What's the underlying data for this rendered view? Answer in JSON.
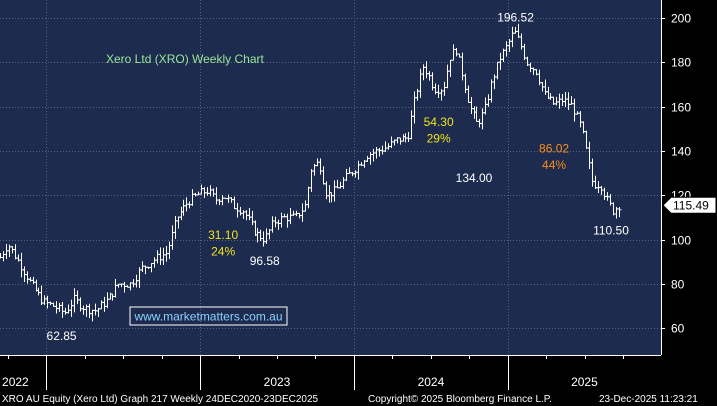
{
  "colors": {
    "plot_bg": "#1c2b4e",
    "axis_bg": "#000000",
    "grid": "#56627e",
    "candle": "#ffffff",
    "title": "#9be59b",
    "yellow": "#f2e21d",
    "orange": "#ff8c1a",
    "watermark": "#8fd0ff",
    "text": "#ffffff",
    "footer_bg": "#000000"
  },
  "footer": {
    "left": "XRO AU Equity (Xero Ltd) Graph 217 Weekly 24DEC2020-23DEC2025",
    "center": "Copyright© 2025 Bloomberg Finance L.P.",
    "right": "23-Dec-2025 11:23:21"
  },
  "chart_data": {
    "type": "candlestick",
    "title": "Xero Ltd (XRO) Weekly Chart",
    "watermark": "www.marketmatters.com.au",
    "x_range": [
      2021.7,
      2025.995
    ],
    "x_ticks": [
      {
        "label": "2022",
        "x": 2022.0
      },
      {
        "label": "2023",
        "x": 2023.0
      },
      {
        "label": "2024",
        "x": 2024.0
      },
      {
        "label": "2025",
        "x": 2025.0
      }
    ],
    "ylim": [
      48,
      208
    ],
    "y_ticks": [
      60,
      80,
      100,
      120,
      140,
      160,
      180,
      200
    ],
    "last_price": 115.49,
    "key_points": [
      [
        2021.7,
        92
      ],
      [
        2021.75,
        98
      ],
      [
        2021.82,
        90
      ],
      [
        2021.9,
        80
      ],
      [
        2021.98,
        72
      ],
      [
        2022.05,
        70
      ],
      [
        2022.12,
        67
      ],
      [
        2022.18,
        73
      ],
      [
        2022.25,
        69
      ],
      [
        2022.32,
        68
      ],
      [
        2022.4,
        73
      ],
      [
        2022.47,
        80
      ],
      [
        2022.55,
        80
      ],
      [
        2022.62,
        87
      ],
      [
        2022.7,
        91
      ],
      [
        2022.78,
        94
      ],
      [
        2022.85,
        110
      ],
      [
        2022.92,
        117
      ],
      [
        2023.0,
        121
      ],
      [
        2023.05,
        122
      ],
      [
        2023.1,
        118
      ],
      [
        2023.15,
        120
      ],
      [
        2023.22,
        115
      ],
      [
        2023.28,
        113
      ],
      [
        2023.36,
        103
      ],
      [
        2023.42,
        100
      ],
      [
        2023.48,
        108
      ],
      [
        2023.55,
        110
      ],
      [
        2023.62,
        110
      ],
      [
        2023.68,
        115
      ],
      [
        2023.72,
        132
      ],
      [
        2023.77,
        135
      ],
      [
        2023.82,
        120
      ],
      [
        2023.88,
        122
      ],
      [
        2023.95,
        128
      ],
      [
        2024.02,
        133
      ],
      [
        2024.08,
        138
      ],
      [
        2024.15,
        140
      ],
      [
        2024.22,
        142
      ],
      [
        2024.28,
        145
      ],
      [
        2024.35,
        146
      ],
      [
        2024.4,
        165
      ],
      [
        2024.45,
        178
      ],
      [
        2024.48,
        175
      ],
      [
        2024.52,
        168
      ],
      [
        2024.58,
        168
      ],
      [
        2024.62,
        182
      ],
      [
        2024.66,
        186
      ],
      [
        2024.7,
        175
      ],
      [
        2024.75,
        160
      ],
      [
        2024.8,
        152
      ],
      [
        2024.85,
        158
      ],
      [
        2024.9,
        172
      ],
      [
        2024.95,
        182
      ],
      [
        2025.0,
        188
      ],
      [
        2025.04,
        194
      ],
      [
        2025.08,
        188
      ],
      [
        2025.12,
        180
      ],
      [
        2025.18,
        176
      ],
      [
        2025.24,
        165
      ],
      [
        2025.3,
        161
      ],
      [
        2025.36,
        163
      ],
      [
        2025.42,
        160
      ],
      [
        2025.48,
        150
      ],
      [
        2025.55,
        125
      ],
      [
        2025.6,
        125
      ],
      [
        2025.64,
        118
      ],
      [
        2025.68,
        113
      ],
      [
        2025.72,
        115.49
      ]
    ],
    "annotations": [
      {
        "text": "62.85",
        "x": 2022.1,
        "y": 62.85,
        "color": "white",
        "place": "below"
      },
      {
        "text": "31.10",
        "x": 2023.15,
        "y": 102.5,
        "color": "yellow",
        "place": "inline"
      },
      {
        "text": "24%",
        "x": 2023.15,
        "y": 95,
        "color": "yellow",
        "place": "inline"
      },
      {
        "text": "96.58",
        "x": 2023.42,
        "y": 96.58,
        "color": "white",
        "place": "below"
      },
      {
        "text": "54.30",
        "x": 2024.55,
        "y": 153.5,
        "color": "yellow",
        "place": "inline"
      },
      {
        "text": "29%",
        "x": 2024.55,
        "y": 146,
        "color": "yellow",
        "place": "inline"
      },
      {
        "text": "134.00",
        "x": 2024.78,
        "y": 134.0,
        "color": "white",
        "place": "below"
      },
      {
        "text": "196.52",
        "x": 2025.05,
        "y": 196.52,
        "color": "white",
        "place": "above"
      },
      {
        "text": "86.02",
        "x": 2025.3,
        "y": 141.5,
        "color": "orange",
        "place": "inline"
      },
      {
        "text": "44%",
        "x": 2025.3,
        "y": 134,
        "color": "orange",
        "place": "inline"
      },
      {
        "text": "110.50",
        "x": 2025.67,
        "y": 110.5,
        "color": "white",
        "place": "below"
      }
    ]
  }
}
